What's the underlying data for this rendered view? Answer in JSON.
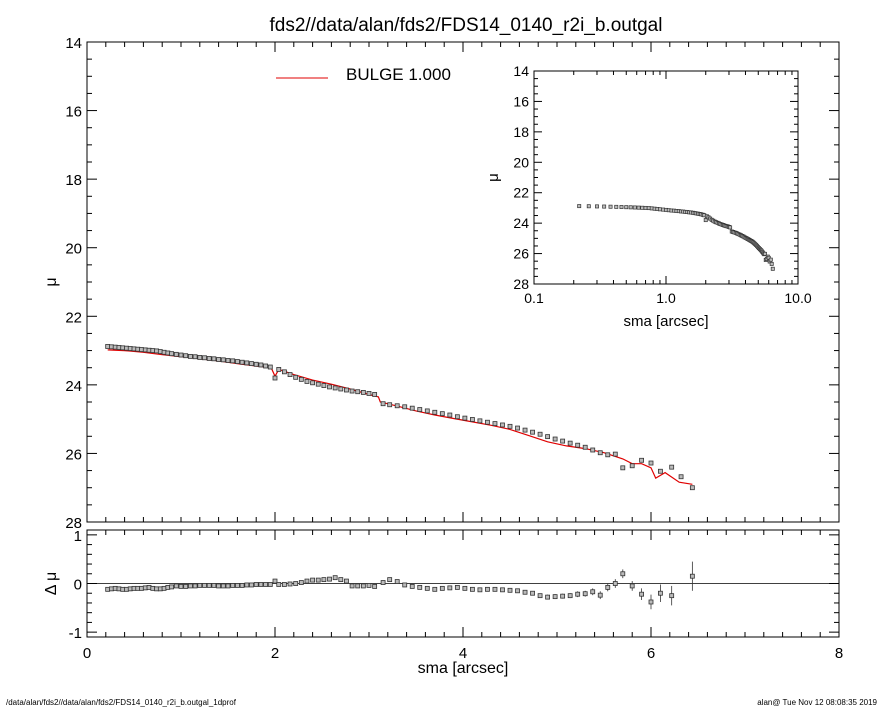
{
  "title": "fds2//data/alan/fds2/FDS14_0140_r2i_b.outgal",
  "legend": {
    "label": "BULGE  1.000",
    "color": "#e00000"
  },
  "footer": {
    "left": "/data/alan/fds2//data/alan/fds2/FDS14_0140_r2i_b.outgal_1dprof",
    "right": "alan@  Tue Nov 12 08:08:35 2019"
  },
  "chart_data": [
    {
      "id": "main",
      "type": "scatter",
      "xlabel": "",
      "ylabel": "μ",
      "xlim": [
        0,
        8
      ],
      "ylim": [
        28,
        14
      ],
      "y_inverted": true,
      "xticks": [
        "0",
        "2",
        "4",
        "6",
        "8"
      ],
      "yticks": [
        "14",
        "16",
        "18",
        "20",
        "22",
        "24",
        "26",
        "28"
      ],
      "data_points": [
        [
          0.22,
          22.88
        ],
        [
          0.26,
          22.89
        ],
        [
          0.3,
          22.9
        ],
        [
          0.34,
          22.91
        ],
        [
          0.38,
          22.92
        ],
        [
          0.42,
          22.93
        ],
        [
          0.46,
          22.94
        ],
        [
          0.5,
          22.95
        ],
        [
          0.54,
          22.96
        ],
        [
          0.58,
          22.97
        ],
        [
          0.62,
          22.98
        ],
        [
          0.66,
          22.99
        ],
        [
          0.7,
          23.0
        ],
        [
          0.74,
          23.01
        ],
        [
          0.78,
          23.03
        ],
        [
          0.82,
          23.05
        ],
        [
          0.86,
          23.07
        ],
        [
          0.9,
          23.09
        ],
        [
          0.95,
          23.11
        ],
        [
          1.0,
          23.13
        ],
        [
          1.05,
          23.15
        ],
        [
          1.1,
          23.17
        ],
        [
          1.15,
          23.18
        ],
        [
          1.2,
          23.2
        ],
        [
          1.25,
          23.21
        ],
        [
          1.3,
          23.23
        ],
        [
          1.35,
          23.24
        ],
        [
          1.4,
          23.26
        ],
        [
          1.45,
          23.27
        ],
        [
          1.5,
          23.29
        ],
        [
          1.55,
          23.3
        ],
        [
          1.6,
          23.32
        ],
        [
          1.65,
          23.34
        ],
        [
          1.7,
          23.36
        ],
        [
          1.75,
          23.38
        ],
        [
          1.8,
          23.4
        ],
        [
          1.85,
          23.42
        ],
        [
          1.9,
          23.45
        ],
        [
          1.95,
          23.48
        ],
        [
          2.0,
          23.8
        ],
        [
          2.04,
          23.55
        ],
        [
          2.1,
          23.62
        ],
        [
          2.16,
          23.7
        ],
        [
          2.22,
          23.78
        ],
        [
          2.28,
          23.84
        ],
        [
          2.34,
          23.9
        ],
        [
          2.4,
          23.94
        ],
        [
          2.46,
          23.98
        ],
        [
          2.52,
          24.02
        ],
        [
          2.58,
          24.06
        ],
        [
          2.64,
          24.09
        ],
        [
          2.7,
          24.12
        ],
        [
          2.76,
          24.15
        ],
        [
          2.82,
          24.18
        ],
        [
          2.88,
          24.2
        ],
        [
          2.94,
          24.22
        ],
        [
          3.0,
          24.25
        ],
        [
          3.06,
          24.28
        ],
        [
          3.15,
          24.55
        ],
        [
          3.22,
          24.58
        ],
        [
          3.3,
          24.61
        ],
        [
          3.38,
          24.64
        ],
        [
          3.46,
          24.68
        ],
        [
          3.54,
          24.72
        ],
        [
          3.62,
          24.76
        ],
        [
          3.7,
          24.8
        ],
        [
          3.78,
          24.84
        ],
        [
          3.86,
          24.88
        ],
        [
          3.94,
          24.93
        ],
        [
          4.02,
          24.97
        ],
        [
          4.1,
          25.01
        ],
        [
          4.18,
          25.05
        ],
        [
          4.26,
          25.09
        ],
        [
          4.34,
          25.13
        ],
        [
          4.42,
          25.17
        ],
        [
          4.5,
          25.21
        ],
        [
          4.58,
          25.26
        ],
        [
          4.66,
          25.32
        ],
        [
          4.74,
          25.38
        ],
        [
          4.82,
          25.44
        ],
        [
          4.9,
          25.51
        ],
        [
          4.98,
          25.58
        ],
        [
          5.06,
          25.64
        ],
        [
          5.14,
          25.7
        ],
        [
          5.22,
          25.76
        ],
        [
          5.3,
          25.82
        ],
        [
          5.38,
          25.9
        ],
        [
          5.46,
          25.98
        ],
        [
          5.54,
          26.04
        ],
        [
          5.62,
          26.02
        ],
        [
          5.7,
          26.42
        ],
        [
          5.8,
          26.36
        ],
        [
          5.9,
          26.2
        ],
        [
          6.0,
          26.28
        ],
        [
          6.1,
          26.52
        ],
        [
          6.22,
          26.4
        ],
        [
          6.32,
          26.68
        ],
        [
          6.44,
          27.0
        ]
      ],
      "model_line": [
        [
          0.22,
          22.98
        ],
        [
          0.4,
          23.0
        ],
        [
          0.6,
          23.05
        ],
        [
          0.8,
          23.12
        ],
        [
          1.0,
          23.18
        ],
        [
          1.2,
          23.24
        ],
        [
          1.4,
          23.3
        ],
        [
          1.6,
          23.38
        ],
        [
          1.8,
          23.45
        ],
        [
          1.96,
          23.5
        ],
        [
          2.0,
          23.75
        ],
        [
          2.04,
          23.55
        ],
        [
          2.2,
          23.7
        ],
        [
          2.4,
          23.86
        ],
        [
          2.6,
          23.98
        ],
        [
          2.8,
          24.12
        ],
        [
          3.0,
          24.28
        ],
        [
          3.1,
          24.35
        ],
        [
          3.12,
          24.5
        ],
        [
          3.3,
          24.62
        ],
        [
          3.5,
          24.76
        ],
        [
          3.7,
          24.88
        ],
        [
          3.9,
          24.98
        ],
        [
          4.1,
          25.08
        ],
        [
          4.3,
          25.18
        ],
        [
          4.5,
          25.3
        ],
        [
          4.7,
          25.48
        ],
        [
          4.9,
          25.66
        ],
        [
          5.1,
          25.78
        ],
        [
          5.3,
          25.86
        ],
        [
          5.5,
          25.98
        ],
        [
          5.7,
          26.16
        ],
        [
          5.8,
          26.3
        ],
        [
          5.9,
          26.3
        ],
        [
          6.0,
          26.42
        ],
        [
          6.05,
          26.72
        ],
        [
          6.15,
          26.56
        ],
        [
          6.3,
          26.84
        ],
        [
          6.44,
          26.9
        ]
      ]
    },
    {
      "id": "residual",
      "type": "scatter",
      "xlabel": "sma [arcsec]",
      "ylabel": "Δ μ",
      "xlim": [
        0,
        8
      ],
      "ylim": [
        -1.1,
        1.1
      ],
      "xticks": [
        "0",
        "2",
        "4",
        "6",
        "8"
      ],
      "yticks": [
        "-1",
        "0",
        "1"
      ],
      "zero_line": true,
      "data_points": [
        [
          0.22,
          -0.12,
          0
        ],
        [
          0.26,
          -0.11,
          0
        ],
        [
          0.3,
          -0.1,
          0
        ],
        [
          0.34,
          -0.11,
          0
        ],
        [
          0.38,
          -0.12,
          0
        ],
        [
          0.42,
          -0.12,
          0
        ],
        [
          0.46,
          -0.11,
          0
        ],
        [
          0.5,
          -0.1,
          0
        ],
        [
          0.54,
          -0.1,
          0
        ],
        [
          0.58,
          -0.1,
          0
        ],
        [
          0.62,
          -0.09,
          0
        ],
        [
          0.66,
          -0.08,
          0
        ],
        [
          0.7,
          -0.1,
          0
        ],
        [
          0.74,
          -0.11,
          0
        ],
        [
          0.78,
          -0.11,
          0
        ],
        [
          0.82,
          -0.1,
          0
        ],
        [
          0.86,
          -0.08,
          0
        ],
        [
          0.9,
          -0.07,
          0
        ],
        [
          0.95,
          -0.05,
          0
        ],
        [
          1.0,
          -0.06,
          0
        ],
        [
          1.05,
          -0.06,
          0
        ],
        [
          1.1,
          -0.05,
          0
        ],
        [
          1.15,
          -0.05,
          0
        ],
        [
          1.2,
          -0.04,
          0
        ],
        [
          1.25,
          -0.04,
          0
        ],
        [
          1.3,
          -0.04,
          0
        ],
        [
          1.35,
          -0.04,
          0
        ],
        [
          1.4,
          -0.05,
          0
        ],
        [
          1.45,
          -0.05,
          0
        ],
        [
          1.5,
          -0.05,
          0
        ],
        [
          1.55,
          -0.04,
          0
        ],
        [
          1.6,
          -0.04,
          0
        ],
        [
          1.65,
          -0.04,
          0
        ],
        [
          1.7,
          -0.03,
          0
        ],
        [
          1.75,
          -0.03,
          0
        ],
        [
          1.8,
          -0.02,
          0
        ],
        [
          1.85,
          -0.02,
          0
        ],
        [
          1.9,
          -0.02,
          0
        ],
        [
          1.95,
          -0.02,
          0
        ],
        [
          2.0,
          0.05,
          0
        ],
        [
          2.04,
          -0.02,
          0
        ],
        [
          2.1,
          -0.02,
          0
        ],
        [
          2.16,
          -0.01,
          0
        ],
        [
          2.22,
          0.0,
          0
        ],
        [
          2.28,
          0.02,
          0
        ],
        [
          2.34,
          0.05,
          0
        ],
        [
          2.4,
          0.07,
          0
        ],
        [
          2.46,
          0.07,
          0
        ],
        [
          2.52,
          0.08,
          0
        ],
        [
          2.58,
          0.09,
          0
        ],
        [
          2.64,
          0.12,
          0
        ],
        [
          2.7,
          0.08,
          0
        ],
        [
          2.76,
          0.05,
          0
        ],
        [
          2.82,
          -0.05,
          0
        ],
        [
          2.88,
          -0.05,
          0
        ],
        [
          2.94,
          -0.05,
          0
        ],
        [
          3.0,
          -0.04,
          0
        ],
        [
          3.06,
          -0.06,
          0
        ],
        [
          3.15,
          0.02,
          0
        ],
        [
          3.22,
          0.08,
          0
        ],
        [
          3.3,
          0.04,
          0
        ],
        [
          3.38,
          -0.03,
          0
        ],
        [
          3.46,
          -0.06,
          0
        ],
        [
          3.54,
          -0.08,
          0
        ],
        [
          3.62,
          -0.1,
          0
        ],
        [
          3.7,
          -0.12,
          0
        ],
        [
          3.78,
          -0.1,
          0
        ],
        [
          3.86,
          -0.09,
          0
        ],
        [
          3.94,
          -0.08,
          0
        ],
        [
          4.02,
          -0.1,
          0
        ],
        [
          4.1,
          -0.12,
          0
        ],
        [
          4.18,
          -0.13,
          0
        ],
        [
          4.26,
          -0.12,
          0
        ],
        [
          4.34,
          -0.12,
          0
        ],
        [
          4.42,
          -0.13,
          0
        ],
        [
          4.5,
          -0.14,
          0
        ],
        [
          4.58,
          -0.15,
          0
        ],
        [
          4.66,
          -0.18,
          0
        ],
        [
          4.74,
          -0.2,
          0
        ],
        [
          4.82,
          -0.25,
          0.04
        ],
        [
          4.9,
          -0.28,
          0.05
        ],
        [
          4.98,
          -0.27,
          0.05
        ],
        [
          5.06,
          -0.26,
          0.05
        ],
        [
          5.14,
          -0.25,
          0.05
        ],
        [
          5.22,
          -0.22,
          0.06
        ],
        [
          5.3,
          -0.21,
          0.06
        ],
        [
          5.38,
          -0.17,
          0.07
        ],
        [
          5.46,
          -0.24,
          0.08
        ],
        [
          5.54,
          -0.08,
          0.08
        ],
        [
          5.62,
          0.0,
          0.09
        ],
        [
          5.7,
          0.2,
          0.09
        ],
        [
          5.8,
          -0.05,
          0.1
        ],
        [
          5.9,
          -0.22,
          0.12
        ],
        [
          6.0,
          -0.38,
          0.15
        ],
        [
          6.1,
          -0.2,
          0.18
        ],
        [
          6.22,
          -0.25,
          0.2
        ],
        [
          6.44,
          0.15,
          0.3
        ]
      ]
    },
    {
      "id": "inset",
      "type": "scatter",
      "xlabel": "sma [arcsec]",
      "ylabel": "μ",
      "x_scale": "log",
      "xlim": [
        0.1,
        10
      ],
      "ylim": [
        28,
        14
      ],
      "y_inverted": true,
      "xticks": [
        "0.1",
        "1.0",
        "10.0"
      ],
      "yticks": [
        "14",
        "16",
        "18",
        "20",
        "22",
        "24",
        "26",
        "28"
      ],
      "uses_points_of": "main"
    }
  ]
}
